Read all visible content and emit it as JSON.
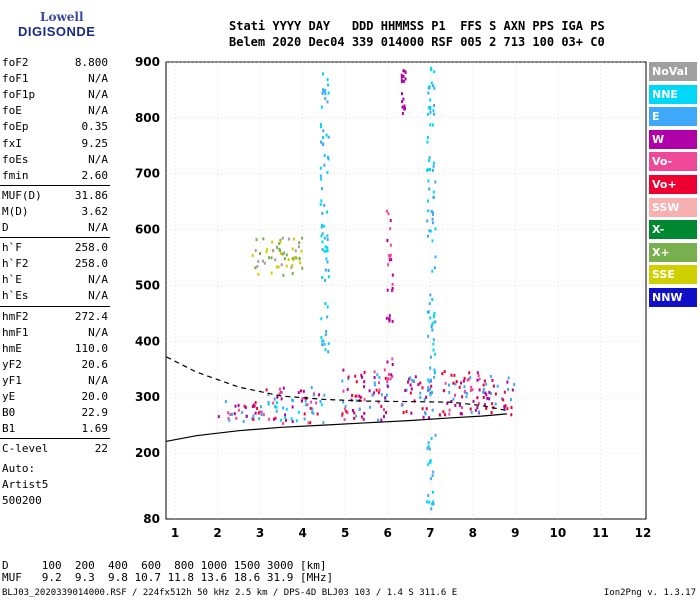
{
  "logo": {
    "line1": "Lowell",
    "line2": "DIGISONDE"
  },
  "header": {
    "line1": "Stati YYYY DAY   DDD HHMMSS P1  FFS S AXN PPS IGA PS",
    "line2": "Belem 2020 Dec04 339 014000 RSF 005 2 713 100 03+ C0"
  },
  "params": [
    {
      "k": "foF2",
      "v": "8.800"
    },
    {
      "k": "foF1",
      "v": "N/A"
    },
    {
      "k": "foF1p",
      "v": "N/A"
    },
    {
      "k": "foE",
      "v": "N/A"
    },
    {
      "k": "foEp",
      "v": "0.35"
    },
    {
      "k": "fxI",
      "v": "9.25"
    },
    {
      "k": "foEs",
      "v": "N/A"
    },
    {
      "k": "fmin",
      "v": "2.60"
    },
    {
      "k": "MUF(D)",
      "v": "31.86"
    },
    {
      "k": "M(D)",
      "v": "3.62"
    },
    {
      "k": "D",
      "v": "N/A"
    },
    {
      "k": "h`F",
      "v": "258.0"
    },
    {
      "k": "h`F2",
      "v": "258.0"
    },
    {
      "k": "h`E",
      "v": "N/A"
    },
    {
      "k": "h`Es",
      "v": "N/A"
    },
    {
      "k": "hmF2",
      "v": "272.4"
    },
    {
      "k": "hmF1",
      "v": "N/A"
    },
    {
      "k": "hmE",
      "v": "110.0"
    },
    {
      "k": "yF2",
      "v": "20.6"
    },
    {
      "k": "yF1",
      "v": "N/A"
    },
    {
      "k": "yE",
      "v": "20.0"
    },
    {
      "k": "B0",
      "v": "22.9"
    },
    {
      "k": "B1",
      "v": "1.69"
    },
    {
      "k": "C-level",
      "v": "22"
    }
  ],
  "auto": {
    "line1": "Auto:",
    "line2": "Artist5",
    "line3": "500200"
  },
  "legend": [
    {
      "label": "NoVal",
      "color": "#a0a0a0"
    },
    {
      "label": "NNE",
      "color": "#00d8f8"
    },
    {
      "label": "E",
      "color": "#40a8f8"
    },
    {
      "label": "W",
      "color": "#b000a8"
    },
    {
      "label": "Vo-",
      "color": "#f04898"
    },
    {
      "label": "Vo+",
      "color": "#f00030"
    },
    {
      "label": "SSW",
      "color": "#f8b0b0"
    },
    {
      "label": "X-",
      "color": "#008830"
    },
    {
      "label": "X+",
      "color": "#78b050"
    },
    {
      "label": "SSE",
      "color": "#d0d000"
    },
    {
      "label": "NNW",
      "color": "#1010c8"
    }
  ],
  "footer": {
    "d_row": "D     100  200  400  600  800 1000 1500 3000 [km]",
    "muf_row": "MUF   9.2  9.3  9.8 10.7 11.8 13.6 18.6 31.9 [MHz]",
    "file": "BLJ03_2020339014000.RSF / 224fx512h 50 kHz 2.5 km / DPS-4D BLJ03 103 / 1.4 S 311.6 E",
    "version": "Ion2Png v. 1.3.17"
  },
  "chart_data": {
    "type": "scatter",
    "title": "",
    "xlabel": "",
    "ylabel": "",
    "x_ticks": [
      1,
      2,
      3,
      4,
      5,
      6,
      7,
      8,
      9,
      10,
      11,
      12
    ],
    "y_ticks": [
      200,
      300,
      400,
      500,
      600,
      700,
      800,
      900
    ],
    "y_tick_labels": [
      "200",
      "300",
      "400",
      "500",
      "600",
      "700",
      "800",
      "900"
    ],
    "y_bottom_label": "80",
    "xlim": [
      0.8,
      12.2
    ],
    "ylim": [
      80,
      900
    ],
    "grid": true,
    "series": [
      {
        "name": "profile_dashed",
        "style": "dashed",
        "color": "#000000",
        "x": [
          0.8,
          1.5,
          2.5,
          3.5,
          4.5,
          5.5,
          6.5,
          7.5,
          8.2,
          8.8
        ],
        "y": [
          372,
          345,
          318,
          302,
          296,
          293,
          292,
          291,
          285,
          276
        ]
      },
      {
        "name": "trace_solid",
        "style": "solid",
        "color": "#000000",
        "x": [
          0.8,
          1.5,
          2.5,
          3.5,
          4.5,
          5.5,
          6.5,
          7.5,
          8.2,
          8.8
        ],
        "y": [
          221,
          231,
          240,
          246,
          250,
          254,
          258,
          263,
          266,
          270
        ]
      }
    ],
    "scatter_regions": [
      {
        "x": [
          2.0,
          3.0
        ],
        "y": [
          255,
          300
        ],
        "colors": [
          "#f00030",
          "#b000a8",
          "#40a8f8",
          "#f04898"
        ]
      },
      {
        "x": [
          3.0,
          4.5
        ],
        "y": [
          255,
          320
        ],
        "colors": [
          "#f00030",
          "#b000a8",
          "#40a8f8",
          "#f04898",
          "#00d8f8"
        ]
      },
      {
        "x": [
          4.9,
          6.0
        ],
        "y": [
          260,
          355
        ],
        "colors": [
          "#f00030",
          "#40a8f8",
          "#b000a8",
          "#f04898"
        ]
      },
      {
        "x": [
          6.3,
          7.0
        ],
        "y": [
          265,
          340
        ],
        "colors": [
          "#f00030",
          "#40a8f8",
          "#b000a8"
        ]
      },
      {
        "x": [
          7.2,
          8.2
        ],
        "y": [
          270,
          355
        ],
        "colors": [
          "#f00030",
          "#40a8f8",
          "#b000a8",
          "#f04898"
        ]
      },
      {
        "x": [
          8.2,
          9.0
        ],
        "y": [
          270,
          340
        ],
        "colors": [
          "#f00030",
          "#b000a8",
          "#40a8f8"
        ]
      },
      {
        "x": [
          2.8,
          4.0
        ],
        "y": [
          520,
          590
        ],
        "colors": [
          "#d0d000",
          "#78b050",
          "#a0a0a0"
        ]
      },
      {
        "x": [
          4.4,
          4.6
        ],
        "y": [
          380,
          900
        ],
        "colors": [
          "#00d8f8",
          "#40a8f8"
        ]
      },
      {
        "x": [
          6.9,
          7.1
        ],
        "y": [
          100,
          900
        ],
        "colors": [
          "#00d8f8",
          "#40a8f8"
        ]
      },
      {
        "x": [
          6.3,
          6.4
        ],
        "y": [
          810,
          890
        ],
        "colors": [
          "#b000a8"
        ]
      },
      {
        "x": [
          5.95,
          6.1
        ],
        "y": [
          330,
          640
        ],
        "colors": [
          "#b000a8",
          "#f04898"
        ]
      }
    ]
  }
}
